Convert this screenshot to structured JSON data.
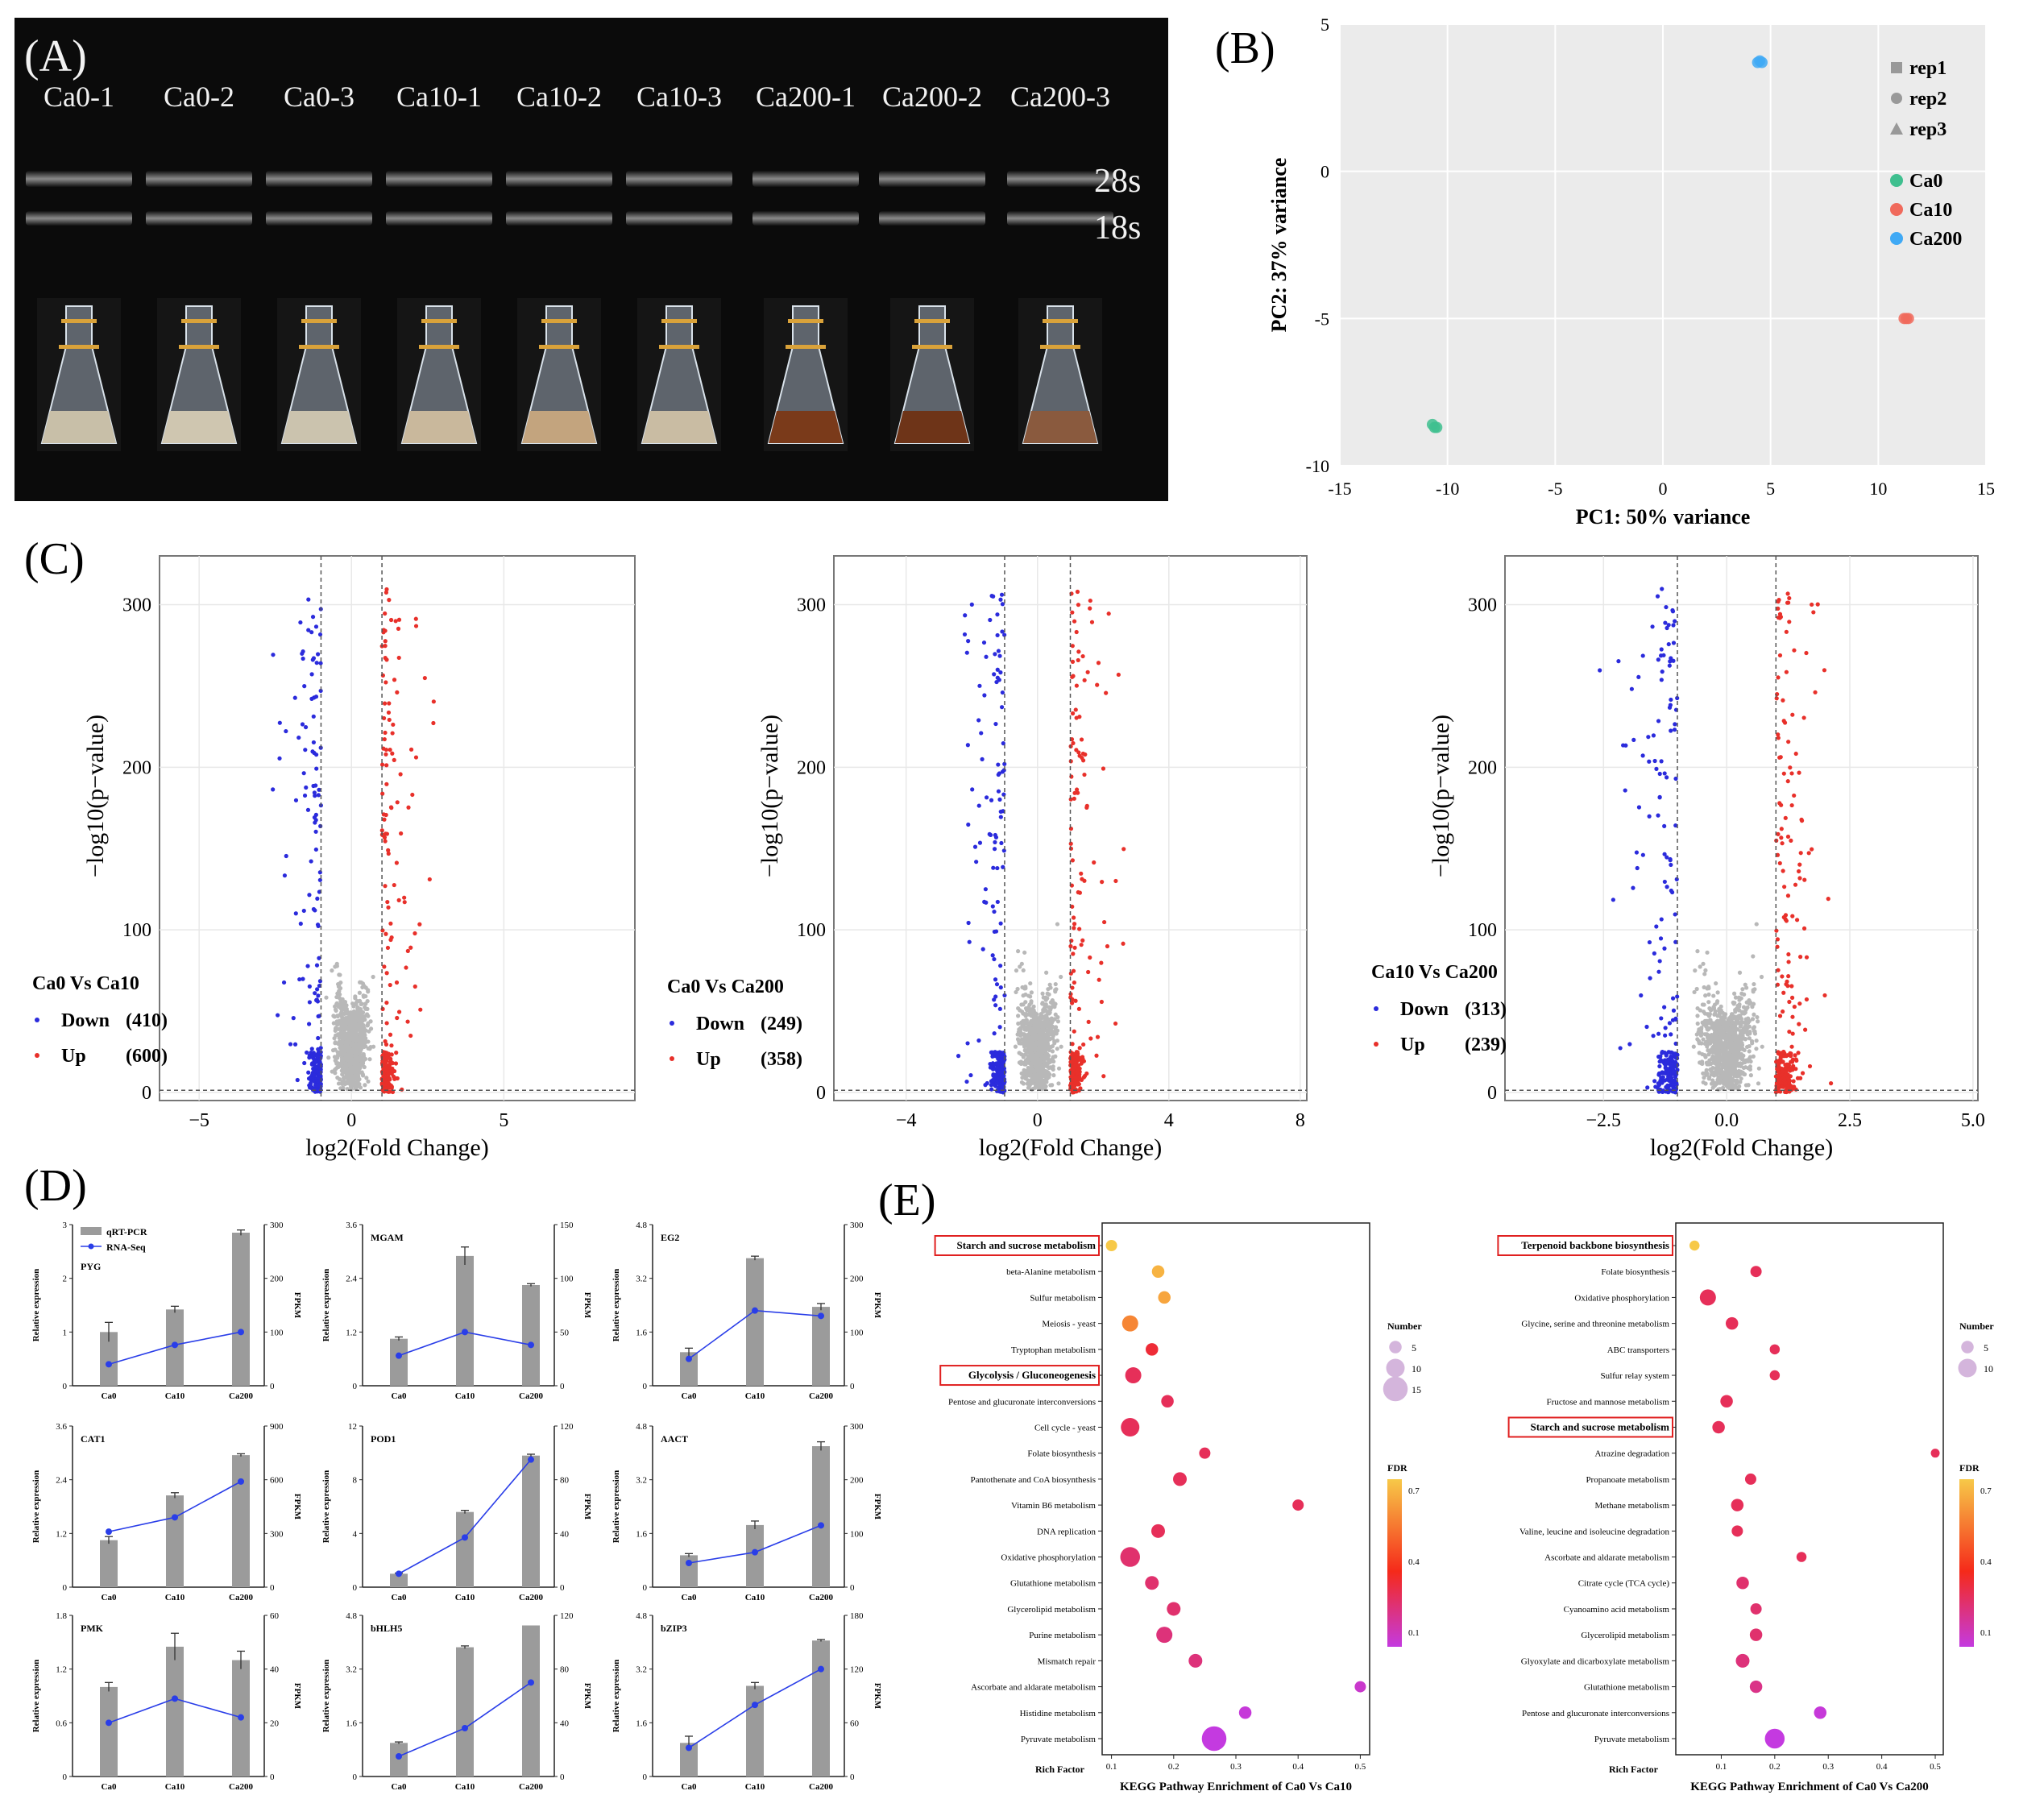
{
  "panel_labels": [
    "(A)",
    "(B)",
    "(C)",
    "(D)",
    "(E)"
  ],
  "panel_a": {
    "samples": [
      "Ca0-1",
      "Ca0-2",
      "Ca0-3",
      "Ca10-1",
      "Ca10-2",
      "Ca10-3",
      "Ca200-1",
      "Ca200-2",
      "Ca200-3"
    ],
    "band_labels": [
      "28s",
      "18s"
    ],
    "culture_colors": [
      "#c8bfa8",
      "#cfc6b0",
      "#cbc3ae",
      "#c9b89c",
      "#c3a47e",
      "#c9bca3",
      "#7a3a1a",
      "#6e3418",
      "#8a5a3e"
    ]
  },
  "chart_data": [
    {
      "id": "B",
      "type": "scatter",
      "title": "",
      "xlabel": "PC1: 50% variance",
      "ylabel": "PC2: 37% variance",
      "xlim": [
        -15,
        15
      ],
      "ylim": [
        -10,
        5
      ],
      "xticks": [
        -15,
        -10,
        -5,
        0,
        5,
        10,
        15
      ],
      "yticks": [
        -10,
        -5,
        0,
        5
      ],
      "legend_shapes": [
        "rep1",
        "rep2",
        "rep3"
      ],
      "series": [
        {
          "name": "Ca0",
          "color": "#3fbf8f",
          "points": [
            [
              -10.7,
              -8.6
            ],
            [
              -10.6,
              -8.7
            ],
            [
              -10.5,
              -8.7
            ]
          ]
        },
        {
          "name": "Ca10",
          "color": "#f06a5c",
          "points": [
            [
              11.2,
              -5.0
            ],
            [
              11.3,
              -5.0
            ],
            [
              11.4,
              -5.0
            ]
          ]
        },
        {
          "name": "Ca200",
          "color": "#3fa9f5",
          "points": [
            [
              4.4,
              3.7
            ],
            [
              4.5,
              3.75
            ],
            [
              4.6,
              3.7
            ]
          ]
        }
      ]
    },
    {
      "id": "C1",
      "type": "scatter",
      "xlabel": "log2(Fold Change)",
      "ylabel": "−log10(p−value)",
      "xlim": [
        -6.3,
        9.3
      ],
      "ylim": [
        -5,
        330
      ],
      "xticks": [
        -5,
        0,
        5
      ],
      "yticks": [
        0,
        100,
        200,
        300
      ],
      "threshold": 1,
      "legend_title": "Ca0 Vs Ca10",
      "legend": [
        {
          "label": "Down",
          "count": "(410)",
          "color": "#2b2bdc"
        },
        {
          "label": "Up",
          "count": "(600)",
          "color": "#e8302a"
        }
      ]
    },
    {
      "id": "C2",
      "type": "scatter",
      "xlabel": "log2(Fold Change)",
      "ylabel": "−log10(p−value)",
      "xlim": [
        -6.2,
        8.2
      ],
      "ylim": [
        -5,
        330
      ],
      "xticks": [
        -4,
        0,
        4,
        8
      ],
      "yticks": [
        0,
        100,
        200,
        300
      ],
      "threshold": 1,
      "legend_title": "Ca0 Vs Ca200",
      "legend": [
        {
          "label": "Down",
          "count": "(249)",
          "color": "#2b2bdc"
        },
        {
          "label": "Up",
          "count": "(358)",
          "color": "#e8302a"
        }
      ]
    },
    {
      "id": "C3",
      "type": "scatter",
      "xlabel": "log2(Fold Change)",
      "ylabel": "−log10(p−value)",
      "xlim": [
        -4.5,
        5.1
      ],
      "ylim": [
        -5,
        330
      ],
      "xticks": [
        -2.5,
        0.0,
        2.5,
        5.0
      ],
      "xticklabels": [
        "−2.5",
        "0.0",
        "2.5",
        "5.0"
      ],
      "yticks": [
        0,
        100,
        200,
        300
      ],
      "threshold": 1,
      "legend_title": "Ca10 Vs Ca200",
      "legend": [
        {
          "label": "Down",
          "count": "(313)",
          "color": "#2b2bdc"
        },
        {
          "label": "Up",
          "count": "(239)",
          "color": "#e8302a"
        }
      ]
    }
  ],
  "panel_d": {
    "categories": [
      "Ca0",
      "Ca10",
      "Ca200"
    ],
    "left_axis_label": "Relative expression",
    "right_axis_label": "FPKM",
    "legend": [
      "qRT-PCR",
      "RNA-Seq"
    ],
    "genes": [
      {
        "name": "PYG",
        "lmax": 3,
        "lticks": [
          "0",
          "1",
          "2",
          "3"
        ],
        "rmax": 300,
        "rticks": [
          "0",
          "100",
          "200",
          "300"
        ],
        "bars": [
          1.0,
          1.42,
          2.85
        ],
        "errs": [
          0.18,
          0.06,
          0.05
        ],
        "line": [
          40,
          76,
          100
        ]
      },
      {
        "name": "MGAM",
        "lmax": 3.6,
        "lticks": [
          "0",
          "1.2",
          "2.4",
          "3.6"
        ],
        "rmax": 150,
        "rticks": [
          "0",
          "50",
          "100",
          "150"
        ],
        "bars": [
          1.05,
          2.9,
          2.25
        ],
        "errs": [
          0.04,
          0.2,
          0.03
        ],
        "line": [
          28,
          50,
          38
        ]
      },
      {
        "name": "EG2",
        "lmax": 4.8,
        "lticks": [
          "0",
          "1.6",
          "3.2",
          "4.8"
        ],
        "rmax": 300,
        "rticks": [
          "0",
          "100",
          "200",
          "300"
        ],
        "bars": [
          1.0,
          3.8,
          2.35
        ],
        "errs": [
          0.12,
          0.06,
          0.1
        ],
        "line": [
          50,
          140,
          130
        ]
      },
      {
        "name": "CAT1",
        "lmax": 3.6,
        "lticks": [
          "0",
          "1.2",
          "2.4",
          "3.6"
        ],
        "rmax": 900,
        "rticks": [
          "0",
          "300",
          "600",
          "900"
        ],
        "bars": [
          1.05,
          2.05,
          2.95
        ],
        "errs": [
          0.08,
          0.06,
          0.03
        ],
        "line": [
          310,
          390,
          590
        ]
      },
      {
        "name": "POD1",
        "lmax": 12,
        "lticks": [
          "0",
          "4",
          "8",
          "12"
        ],
        "rmax": 120,
        "rticks": [
          "0",
          "40",
          "80",
          "120"
        ],
        "bars": [
          1.0,
          5.6,
          9.8
        ],
        "errs": [
          0.05,
          0.12,
          0.1
        ],
        "line": [
          10,
          37,
          95
        ]
      },
      {
        "name": "AACT",
        "lmax": 4.8,
        "lticks": [
          "0",
          "1.6",
          "3.2",
          "4.8"
        ],
        "rmax": 300,
        "rticks": [
          "0",
          "100",
          "200",
          "300"
        ],
        "bars": [
          0.95,
          1.85,
          4.2
        ],
        "errs": [
          0.05,
          0.12,
          0.13
        ],
        "line": [
          45,
          65,
          115
        ]
      },
      {
        "name": "PMK",
        "lmax": 1.8,
        "lticks": [
          "0",
          "0.6",
          "1.2",
          "1.8"
        ],
        "rmax": 60,
        "rticks": [
          "0",
          "20",
          "40",
          "60"
        ],
        "bars": [
          1.0,
          1.45,
          1.3
        ],
        "errs": [
          0.05,
          0.15,
          0.1
        ],
        "line": [
          20,
          29,
          22
        ]
      },
      {
        "name": "bHLH5",
        "lmax": 4.8,
        "lticks": [
          "0",
          "1.6",
          "3.2",
          "4.8"
        ],
        "rmax": 120,
        "rticks": [
          "0",
          "40",
          "80",
          "120"
        ],
        "bars": [
          1.0,
          3.85,
          4.5
        ],
        "errs": [
          0.03,
          0.04,
          0.0
        ],
        "line": [
          15,
          36,
          70
        ]
      },
      {
        "name": "bZIP3",
        "lmax": 4.8,
        "lticks": [
          "0",
          "1.6",
          "3.2",
          "4.8"
        ],
        "rmax": 180,
        "rticks": [
          "0",
          "60",
          "120",
          "180"
        ],
        "bars": [
          1.0,
          2.7,
          4.05
        ],
        "errs": [
          0.2,
          0.1,
          0.03
        ],
        "line": [
          32,
          80,
          120
        ]
      }
    ]
  },
  "panel_e": [
    {
      "title": "KEGG Pathway Enrichment of Ca0 Vs Ca10",
      "xlabel": "Rich Factor",
      "xlim": [
        0.085,
        0.515
      ],
      "xticks": [
        "0.1",
        "0.2",
        "0.3",
        "0.4",
        "0.5"
      ],
      "size_legend_title": "Number",
      "size_legend": [
        "5",
        "10",
        "15"
      ],
      "color_legend_title": "FDR",
      "color_ticks": [
        "0.7",
        "0.4",
        "0.1"
      ],
      "highlighted": [
        "Starch and sucrose metabolism",
        "Glycolysis / Gluconeogenesis"
      ],
      "pathways": [
        {
          "name": "Starch and sucrose metabolism",
          "rich": 0.1,
          "number": 4,
          "fdr": 0.7
        },
        {
          "name": "beta-Alanine metabolism",
          "rich": 0.175,
          "number": 5,
          "fdr": 0.65
        },
        {
          "name": "Sulfur metabolism",
          "rich": 0.185,
          "number": 5,
          "fdr": 0.62
        },
        {
          "name": "Meiosis - yeast",
          "rich": 0.13,
          "number": 8,
          "fdr": 0.55
        },
        {
          "name": "Tryptophan metabolism",
          "rich": 0.165,
          "number": 5,
          "fdr": 0.3
        },
        {
          "name": "Glycolysis / Gluconeogenesis",
          "rich": 0.135,
          "number": 8,
          "fdr": 0.25
        },
        {
          "name": "Pentose and glucuronate interconversions",
          "rich": 0.19,
          "number": 5,
          "fdr": 0.25
        },
        {
          "name": "Cell cycle - yeast",
          "rich": 0.13,
          "number": 10,
          "fdr": 0.25
        },
        {
          "name": "Folate biosynthesis",
          "rich": 0.25,
          "number": 4,
          "fdr": 0.25
        },
        {
          "name": "Pantothenate and CoA biosynthesis",
          "rich": 0.21,
          "number": 6,
          "fdr": 0.25
        },
        {
          "name": "Vitamin B6 metabolism",
          "rich": 0.4,
          "number": 4,
          "fdr": 0.25
        },
        {
          "name": "DNA replication",
          "rich": 0.175,
          "number": 6,
          "fdr": 0.25
        },
        {
          "name": "Oxidative phosphorylation",
          "rich": 0.13,
          "number": 11,
          "fdr": 0.22
        },
        {
          "name": "Glutathione metabolism",
          "rich": 0.165,
          "number": 6,
          "fdr": 0.22
        },
        {
          "name": "Glycerolipid metabolism",
          "rich": 0.2,
          "number": 6,
          "fdr": 0.22
        },
        {
          "name": "Purine metabolism",
          "rich": 0.185,
          "number": 8,
          "fdr": 0.2
        },
        {
          "name": "Mismatch repair",
          "rich": 0.235,
          "number": 6,
          "fdr": 0.2
        },
        {
          "name": "Ascorbate and aldarate metabolism",
          "rich": 0.5,
          "number": 4,
          "fdr": 0.08
        },
        {
          "name": "Histidine metabolism",
          "rich": 0.315,
          "number": 5,
          "fdr": 0.06
        },
        {
          "name": "Pyruvate metabolism",
          "rich": 0.265,
          "number": 15,
          "fdr": 0.05
        }
      ]
    },
    {
      "title": "KEGG Pathway Enrichment of Ca0 Vs Ca200",
      "xlabel": "Rich Factor",
      "xlim": [
        0.015,
        0.515
      ],
      "xticks": [
        "0.1",
        "0.2",
        "0.3",
        "0.4",
        "0.5"
      ],
      "size_legend_title": "Number",
      "size_legend": [
        "5",
        "10"
      ],
      "color_legend_title": "FDR",
      "color_ticks": [
        "0.7",
        "0.4",
        "0.1"
      ],
      "highlighted": [
        "Terpenoid backbone biosynthesis",
        "Starch and sucrose metabolism"
      ],
      "pathways": [
        {
          "name": "Terpenoid backbone biosynthesis",
          "rich": 0.05,
          "number": 3,
          "fdr": 0.7
        },
        {
          "name": "Folate biosynthesis",
          "rich": 0.165,
          "number": 4,
          "fdr": 0.25
        },
        {
          "name": "Oxidative phosphorylation",
          "rich": 0.075,
          "number": 8,
          "fdr": 0.25
        },
        {
          "name": "Glycine, serine and threonine metabolism",
          "rich": 0.12,
          "number": 5,
          "fdr": 0.25
        },
        {
          "name": "ABC transporters",
          "rich": 0.2,
          "number": 3,
          "fdr": 0.25
        },
        {
          "name": "Sulfur relay system",
          "rich": 0.2,
          "number": 3,
          "fdr": 0.25
        },
        {
          "name": "Fructose and mannose metabolism",
          "rich": 0.11,
          "number": 5,
          "fdr": 0.25
        },
        {
          "name": "Starch and sucrose metabolism",
          "rich": 0.095,
          "number": 5,
          "fdr": 0.25
        },
        {
          "name": "Atrazine degradation",
          "rich": 0.5,
          "number": 2,
          "fdr": 0.25
        },
        {
          "name": "Propanoate metabolism",
          "rich": 0.155,
          "number": 4,
          "fdr": 0.25
        },
        {
          "name": "Methane metabolism",
          "rich": 0.13,
          "number": 5,
          "fdr": 0.25
        },
        {
          "name": "Valine, leucine and isoleucine degradation",
          "rich": 0.13,
          "number": 4,
          "fdr": 0.25
        },
        {
          "name": "Ascorbate and aldarate metabolism",
          "rich": 0.25,
          "number": 3,
          "fdr": 0.25
        },
        {
          "name": "Citrate cycle (TCA cycle)",
          "rich": 0.14,
          "number": 5,
          "fdr": 0.22
        },
        {
          "name": "Cyanoamino acid metabolism",
          "rich": 0.165,
          "number": 4,
          "fdr": 0.22
        },
        {
          "name": "Glycerolipid metabolism",
          "rich": 0.165,
          "number": 5,
          "fdr": 0.22
        },
        {
          "name": "Glyoxylate and dicarboxylate metabolism",
          "rich": 0.14,
          "number": 6,
          "fdr": 0.2
        },
        {
          "name": "Glutathione metabolism",
          "rich": 0.165,
          "number": 5,
          "fdr": 0.18
        },
        {
          "name": "Pentose and glucuronate interconversions",
          "rich": 0.285,
          "number": 5,
          "fdr": 0.06
        },
        {
          "name": "Pyruvate metabolism",
          "rich": 0.2,
          "number": 11,
          "fdr": 0.05
        }
      ]
    }
  ]
}
